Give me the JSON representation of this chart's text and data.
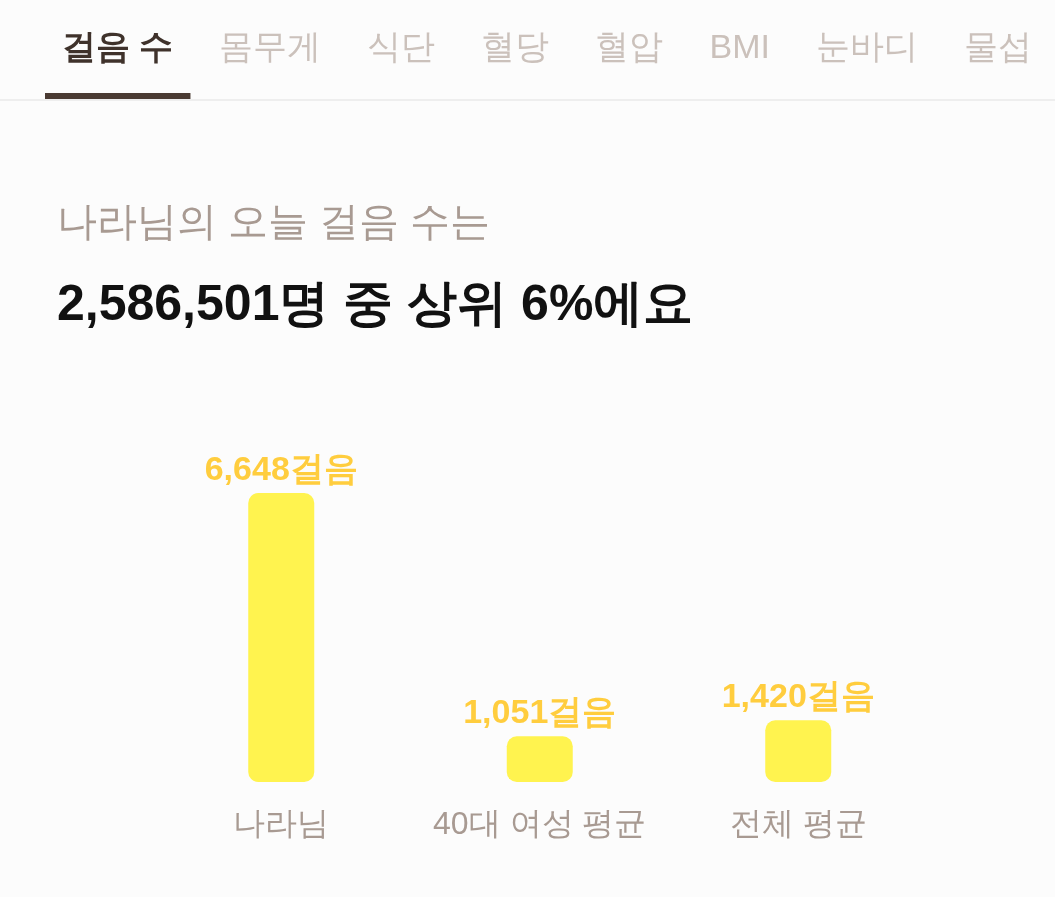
{
  "chart_data": {
    "type": "bar",
    "title": "나라님의 오늘 걸음 수는",
    "subtitle": "2,586,501명 중 상위 6%에요",
    "annotations": [
      "걸음 수",
      "몸무게",
      "식단",
      "혈당",
      "혈압",
      "BMI",
      "눈바디",
      "물섭"
    ],
    "categories": [
      "나라님",
      "40대 여성 평균",
      "전체 평균"
    ],
    "values": [
      6648,
      1051,
      1420
    ],
    "value_labels": [
      "6,648걸음",
      "1,051걸음",
      "1,420걸음"
    ],
    "color": "#fff34f"
  }
}
